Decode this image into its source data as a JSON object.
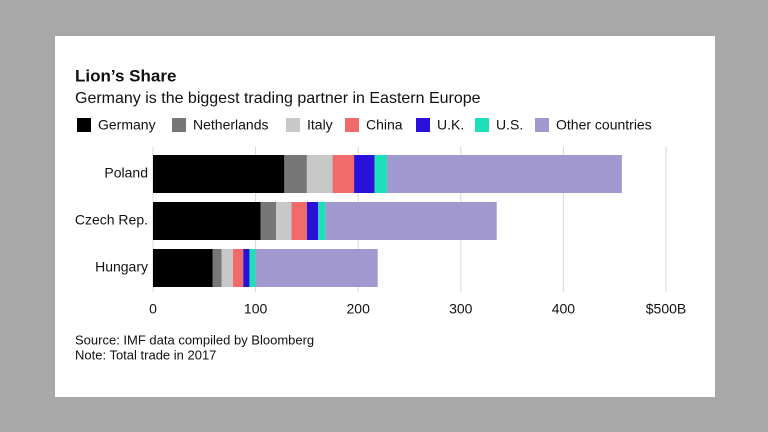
{
  "chart_data": {
    "type": "stacked-bar-horizontal",
    "title": "Lion’s Share",
    "subtitle": "Germany is the biggest trading partner in Eastern Europe",
    "categories": [
      "Poland",
      "Czech Rep.",
      "Hungary"
    ],
    "series": [
      {
        "name": "Germany",
        "color": "#000000",
        "values": [
          128,
          105,
          58
        ]
      },
      {
        "name": "Netherlands",
        "color": "#777777",
        "values": [
          22,
          15,
          9
        ]
      },
      {
        "name": "Italy",
        "color": "#c8c8c8",
        "values": [
          25,
          15,
          11
        ]
      },
      {
        "name": "China",
        "color": "#f26b6b",
        "values": [
          21,
          15,
          10
        ]
      },
      {
        "name": "U.K.",
        "color": "#2a10d8",
        "values": [
          20,
          11,
          6
        ]
      },
      {
        "name": "U.S.",
        "color": "#1de0b8",
        "values": [
          12,
          7,
          6
        ]
      },
      {
        "name": "Other countries",
        "color": "#a198d0",
        "values": [
          229,
          167,
          119
        ]
      }
    ],
    "xlim": [
      0,
      500
    ],
    "xticks": [
      0,
      100,
      200,
      300,
      400,
      {
        "value": 500,
        "label": "$500B"
      }
    ],
    "grid": true,
    "source": "Source: IMF data compiled by Bloomberg",
    "note": "Note: Total trade in 2017"
  }
}
